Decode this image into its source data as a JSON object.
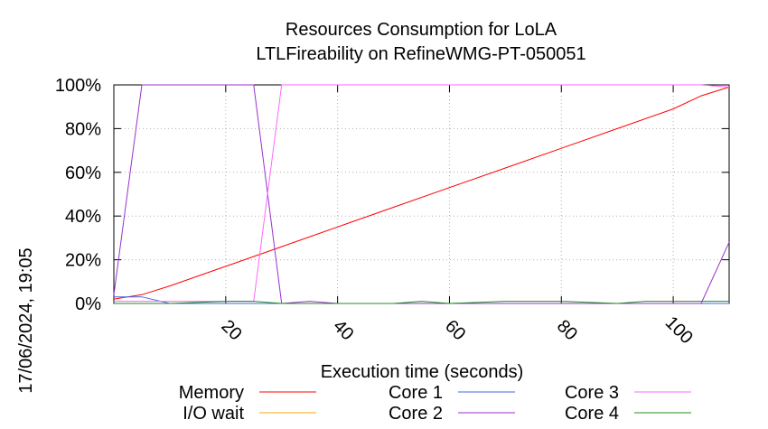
{
  "chart_data": {
    "type": "line",
    "title": "Resources Consumption for LoLA",
    "subtitle": "LTLFireability on RefineWMG-PT-050051",
    "xlabel": "Execution time (seconds)",
    "ylabel": "",
    "timestamp": "17/06/2024, 19:05",
    "xlim": [
      0,
      110
    ],
    "ylim": [
      0,
      100
    ],
    "xticks": [
      20,
      40,
      60,
      80,
      100
    ],
    "xtick_labels": [
      "20",
      "40",
      "60",
      "80",
      "100"
    ],
    "yticks": [
      0,
      20,
      40,
      60,
      80,
      100
    ],
    "ytick_labels": [
      "0%",
      "20%",
      "40%",
      "60%",
      "80%",
      "100%"
    ],
    "grid": true,
    "legend_position": "bottom",
    "series": [
      {
        "name": "Memory",
        "color": "#ff0000",
        "points": [
          [
            0,
            2
          ],
          [
            5,
            4
          ],
          [
            10,
            8
          ],
          [
            20,
            17
          ],
          [
            30,
            26
          ],
          [
            40,
            35
          ],
          [
            50,
            44
          ],
          [
            60,
            53
          ],
          [
            70,
            62
          ],
          [
            80,
            71
          ],
          [
            90,
            80
          ],
          [
            100,
            89
          ],
          [
            105,
            95
          ],
          [
            110,
            99
          ]
        ]
      },
      {
        "name": "I/O wait",
        "color": "#ffa500",
        "points": [
          [
            0,
            0
          ],
          [
            110,
            0
          ]
        ]
      },
      {
        "name": "Core 1",
        "color": "#4169e1",
        "points": [
          [
            0,
            3
          ],
          [
            5,
            3
          ],
          [
            10,
            0
          ],
          [
            20,
            0
          ],
          [
            30,
            0
          ],
          [
            40,
            0
          ],
          [
            50,
            0
          ],
          [
            60,
            0
          ],
          [
            70,
            0
          ],
          [
            80,
            0
          ],
          [
            90,
            0
          ],
          [
            100,
            0
          ],
          [
            110,
            0
          ]
        ]
      },
      {
        "name": "Core 2",
        "color": "#9932cc",
        "points": [
          [
            0,
            4
          ],
          [
            5,
            100
          ],
          [
            10,
            100
          ],
          [
            15,
            100
          ],
          [
            20,
            100
          ],
          [
            25,
            100
          ],
          [
            30,
            0
          ],
          [
            35,
            1
          ],
          [
            40,
            0
          ],
          [
            50,
            0
          ],
          [
            60,
            0
          ],
          [
            70,
            0
          ],
          [
            80,
            0
          ],
          [
            90,
            0
          ],
          [
            100,
            0
          ],
          [
            105,
            0
          ],
          [
            110,
            28
          ]
        ]
      },
      {
        "name": "Core 3",
        "color": "#ff66ff",
        "points": [
          [
            0,
            1
          ],
          [
            5,
            1
          ],
          [
            10,
            1
          ],
          [
            15,
            1
          ],
          [
            20,
            1
          ],
          [
            25,
            1
          ],
          [
            30,
            100
          ],
          [
            40,
            100
          ],
          [
            50,
            100
          ],
          [
            60,
            100
          ],
          [
            70,
            100
          ],
          [
            80,
            100
          ],
          [
            90,
            100
          ],
          [
            100,
            100
          ],
          [
            105,
            100
          ],
          [
            110,
            99
          ]
        ]
      },
      {
        "name": "Core 4",
        "color": "#228b22",
        "points": [
          [
            0,
            0
          ],
          [
            10,
            0
          ],
          [
            20,
            1
          ],
          [
            25,
            1
          ],
          [
            30,
            0
          ],
          [
            40,
            0
          ],
          [
            50,
            0
          ],
          [
            55,
            1
          ],
          [
            60,
            0
          ],
          [
            70,
            1
          ],
          [
            80,
            1
          ],
          [
            90,
            0
          ],
          [
            95,
            1
          ],
          [
            100,
            1
          ],
          [
            110,
            1
          ]
        ]
      }
    ]
  }
}
